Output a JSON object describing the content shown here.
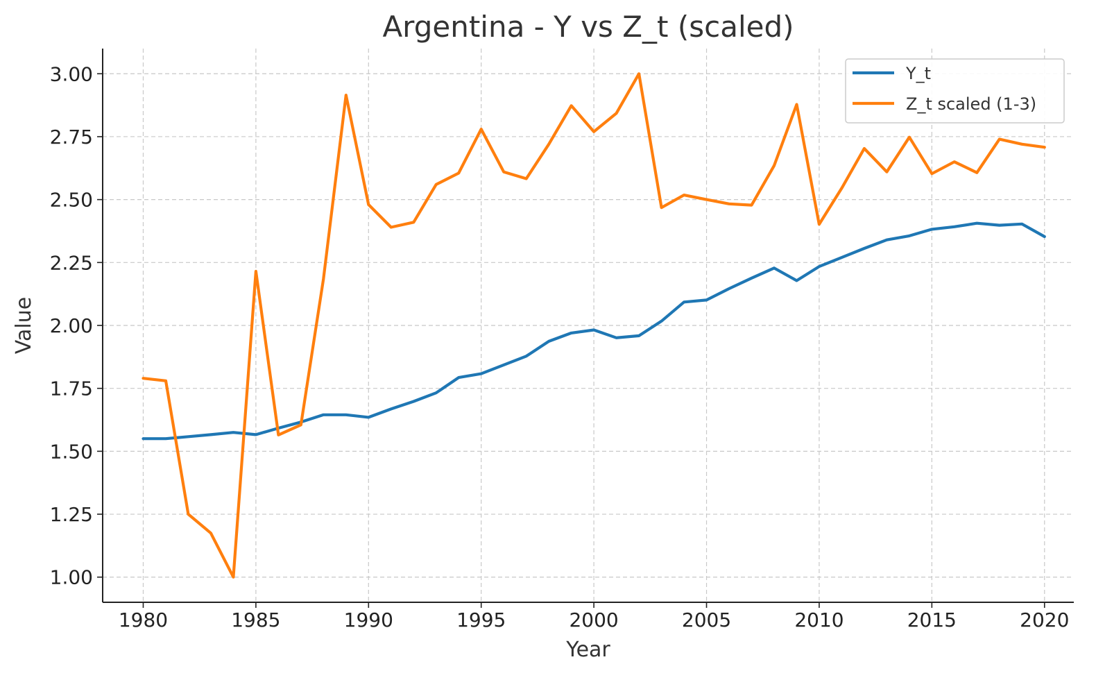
{
  "chart_data": {
    "type": "line",
    "title": "Argentina - Y vs Z_t (scaled)",
    "xlabel": "Year",
    "ylabel": "Value",
    "xlim": [
      1978.2,
      2021.3
    ],
    "ylim": [
      0.9,
      3.1
    ],
    "x_ticks": [
      1980,
      1985,
      1990,
      1995,
      2000,
      2005,
      2010,
      2015,
      2020
    ],
    "y_ticks": [
      1.0,
      1.25,
      1.5,
      1.75,
      2.0,
      2.25,
      2.5,
      2.75,
      3.0
    ],
    "y_tick_labels": [
      "1.00",
      "1.25",
      "1.50",
      "1.75",
      "2.00",
      "2.25",
      "2.50",
      "2.75",
      "3.00"
    ],
    "grid": true,
    "legend_position": "top-right",
    "x": [
      1980,
      1981,
      1982,
      1983,
      1984,
      1985,
      1986,
      1987,
      1988,
      1989,
      1990,
      1991,
      1992,
      1993,
      1994,
      1995,
      1996,
      1997,
      1998,
      1999,
      2000,
      2001,
      2002,
      2003,
      2004,
      2005,
      2006,
      2007,
      2008,
      2009,
      2010,
      2011,
      2012,
      2013,
      2014,
      2015,
      2016,
      2017,
      2018,
      2019,
      2020
    ],
    "series": [
      {
        "name": "Y_t",
        "color": "#1f77b4",
        "values": [
          1.55,
          1.55,
          1.558,
          1.566,
          1.575,
          1.566,
          1.592,
          1.616,
          1.645,
          1.645,
          1.635,
          1.668,
          1.698,
          1.732,
          1.793,
          1.808,
          1.843,
          1.878,
          1.937,
          1.97,
          1.982,
          1.951,
          1.959,
          2.017,
          2.093,
          2.101,
          2.146,
          2.188,
          2.228,
          2.178,
          2.234,
          2.27,
          2.306,
          2.34,
          2.356,
          2.382,
          2.392,
          2.406,
          2.398,
          2.403,
          2.353
        ]
      },
      {
        "name": "Z_t scaled (1-3)",
        "color": "#ff7f0e",
        "values": [
          1.79,
          1.78,
          1.25,
          1.175,
          1.0,
          2.215,
          1.565,
          1.605,
          2.185,
          2.915,
          2.48,
          2.39,
          2.41,
          2.56,
          2.605,
          2.78,
          2.61,
          2.583,
          2.72,
          2.873,
          2.77,
          2.843,
          3.0,
          2.468,
          2.518,
          2.5,
          2.483,
          2.478,
          2.635,
          2.878,
          2.402,
          2.545,
          2.703,
          2.61,
          2.748,
          2.603,
          2.65,
          2.607,
          2.74,
          2.72,
          2.708
        ]
      }
    ]
  }
}
